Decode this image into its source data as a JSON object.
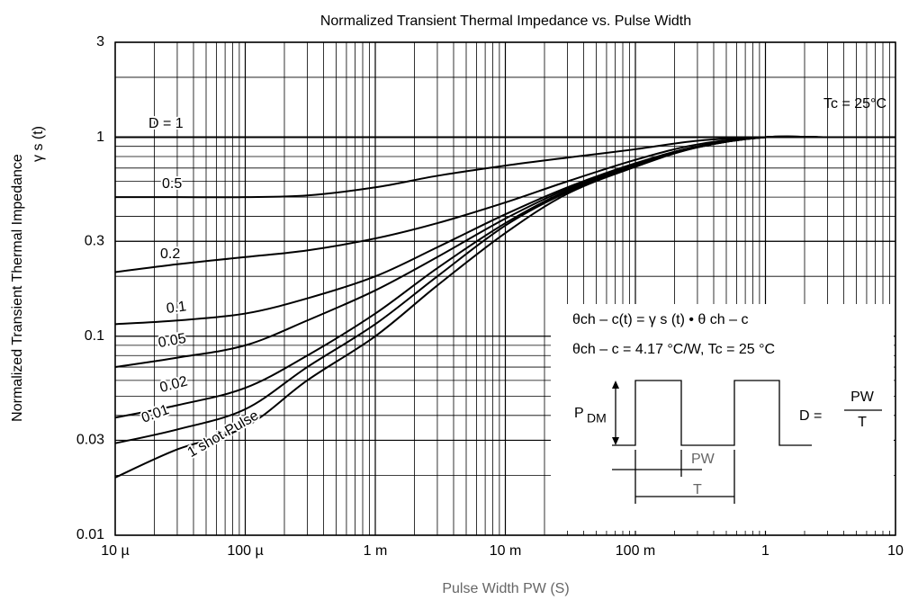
{
  "chart_data": {
    "type": "line",
    "title": "Normalized Transient Thermal Impedance vs. Pulse Width",
    "x_label": "Pulse Width    PW   (S)",
    "y_label": "Normalized Transient Thermal Impedance",
    "y_label_2": "γ s  (t)",
    "log_x": true,
    "log_y": true,
    "grid": true,
    "minor_grid": true,
    "xlim": [
      1e-05,
      10
    ],
    "ylim": [
      0.01,
      3
    ],
    "xticks": [
      {
        "value": 1e-05,
        "label": "10 µ"
      },
      {
        "value": 0.0001,
        "label": "100 µ"
      },
      {
        "value": 0.001,
        "label": "1 m"
      },
      {
        "value": 0.01,
        "label": "10 m"
      },
      {
        "value": 0.1,
        "label": "100 m"
      },
      1,
      10
    ],
    "yticks": [
      0.01,
      0.03,
      0.1,
      0.3,
      1,
      3
    ],
    "x": [
      1e-05,
      3e-05,
      0.0001,
      0.0003,
      0.001,
      0.003,
      0.01,
      0.03,
      0.1,
      0.3,
      1,
      3,
      10
    ],
    "series": [
      {
        "name": "D = 1",
        "color": "#000000",
        "values": [
          1,
          1,
          1,
          1,
          1,
          1,
          1,
          1,
          1,
          1,
          1,
          1,
          1
        ]
      },
      {
        "name": "0.5",
        "color": "#000000",
        "values": [
          0.5,
          0.5,
          0.5,
          0.51,
          0.56,
          0.64,
          0.72,
          0.79,
          0.87,
          0.96,
          1,
          1,
          1
        ]
      },
      {
        "name": "0.2",
        "color": "#000000",
        "values": [
          0.21,
          0.23,
          0.25,
          0.27,
          0.31,
          0.37,
          0.47,
          0.6,
          0.77,
          0.92,
          1,
          1,
          1
        ]
      },
      {
        "name": "0.1",
        "color": "#000000",
        "values": [
          0.115,
          0.12,
          0.13,
          0.155,
          0.2,
          0.28,
          0.41,
          0.56,
          0.74,
          0.9,
          1,
          1,
          1
        ]
      },
      {
        "name": "0.05",
        "color": "#000000",
        "values": [
          0.07,
          0.078,
          0.09,
          0.12,
          0.17,
          0.25,
          0.39,
          0.55,
          0.73,
          0.9,
          1,
          1,
          1
        ]
      },
      {
        "name": "0.02",
        "color": "#000000",
        "values": [
          0.039,
          0.045,
          0.055,
          0.08,
          0.13,
          0.22,
          0.37,
          0.54,
          0.72,
          0.89,
          1,
          1,
          1
        ]
      },
      {
        "name": "0.01",
        "color": "#000000",
        "values": [
          0.029,
          0.034,
          0.043,
          0.07,
          0.115,
          0.2,
          0.36,
          0.53,
          0.72,
          0.89,
          1,
          1,
          1
        ]
      },
      {
        "name": "1 shot Pulse",
        "color": "#000000",
        "values": [
          0.0195,
          0.027,
          0.035,
          0.06,
          0.1,
          0.18,
          0.33,
          0.52,
          0.71,
          0.89,
          1,
          1,
          1
        ]
      }
    ],
    "annotations": {
      "tc": "Tc = 25°C",
      "formula_1": "θch – c(t) = γ s (t) • θ ch – c",
      "formula_2": "θch – c = 4.17 °C/W, Tc = 25 °C",
      "pdm_p": "P",
      "pdm_sub": "DM",
      "pw": "PW",
      "t": "T",
      "d_eq": "D =",
      "frac_num": "PW",
      "frac_den": "T"
    }
  }
}
